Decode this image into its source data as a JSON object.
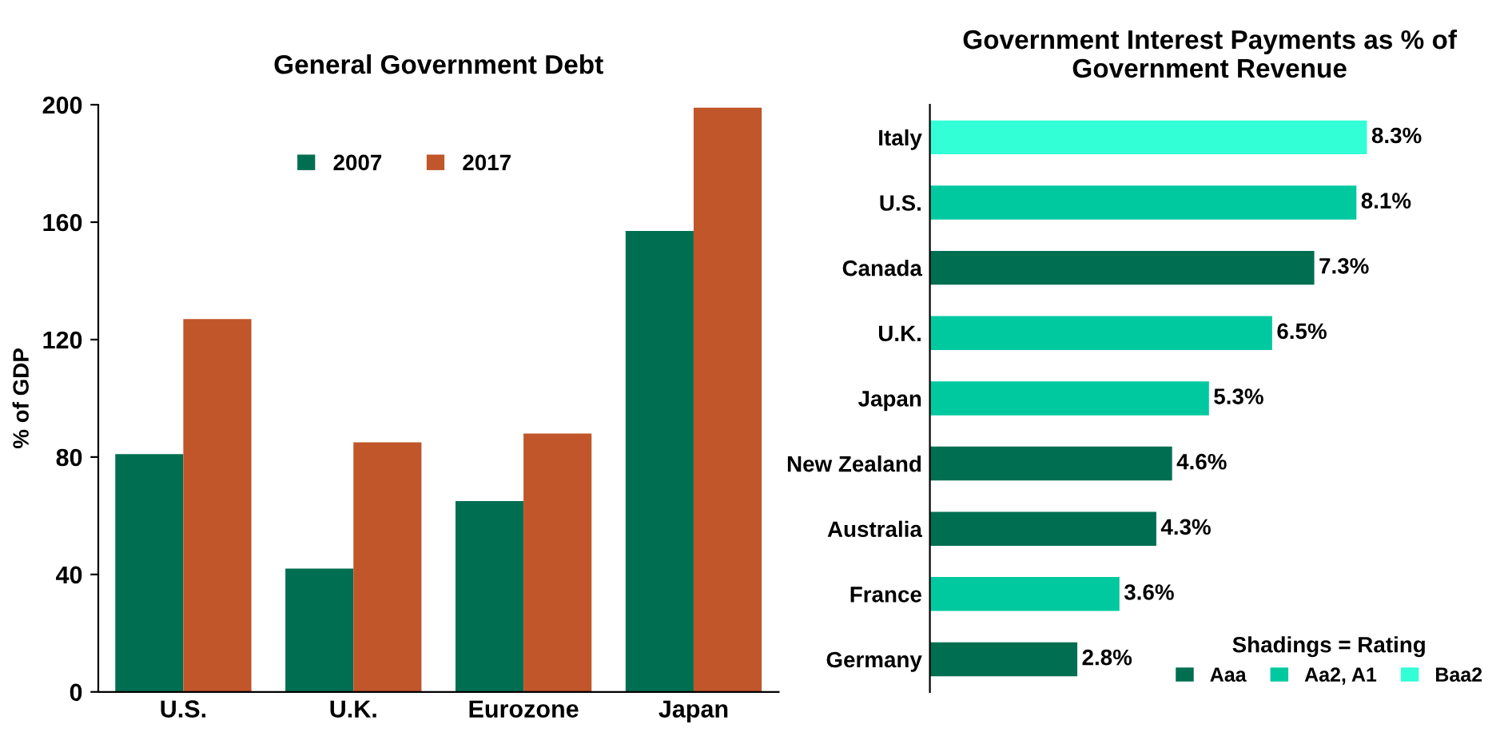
{
  "chart_data": [
    {
      "type": "bar",
      "title": "General Government Debt",
      "ylabel": "% of GDP",
      "categories": [
        "U.S.",
        "U.K.",
        "Eurozone",
        "Japan"
      ],
      "series": [
        {
          "name": "2007",
          "color": "#006f51",
          "values": [
            81,
            42,
            65,
            157
          ]
        },
        {
          "name": "2017",
          "color": "#c0562a",
          "values": [
            127,
            85,
            88,
            199
          ]
        }
      ],
      "ylim": [
        0,
        200
      ],
      "yticks": [
        0,
        40,
        80,
        120,
        160,
        200
      ],
      "grid": false,
      "legend": "top"
    },
    {
      "type": "bar",
      "orientation": "horizontal",
      "title": "Government Interest Payments as % of Government Revenue",
      "categories": [
        "Italy",
        "U.S.",
        "Canada",
        "U.K.",
        "Japan",
        "New Zealand",
        "Australia",
        "France",
        "Germany"
      ],
      "series": [
        {
          "name": "Aaa",
          "color": "#006f51",
          "values": [
            null,
            null,
            7.3,
            null,
            null,
            4.6,
            4.3,
            null,
            2.8
          ],
          "value_labels": [
            null,
            null,
            "7.3%",
            null,
            null,
            "4.6%",
            "4.3%",
            null,
            "2.8%"
          ]
        },
        {
          "name": "Aa2, A1",
          "color": "#00c9a0",
          "values": [
            null,
            8.1,
            null,
            6.5,
            5.3,
            null,
            null,
            3.6,
            null
          ],
          "value_labels": [
            null,
            "8.1%",
            null,
            "6.5%",
            "5.3%",
            null,
            null,
            "3.6%",
            null
          ]
        },
        {
          "name": "Baa2",
          "color": "#33ffd6",
          "values": [
            8.3,
            null,
            null,
            null,
            null,
            null,
            null,
            null,
            null
          ],
          "value_labels": [
            "8.3%",
            null,
            null,
            null,
            null,
            null,
            null,
            null,
            null
          ]
        }
      ],
      "legend_title": "Shadings = Rating",
      "legend": "bottom right",
      "grid": false,
      "tick_labels": "y"
    }
  ]
}
